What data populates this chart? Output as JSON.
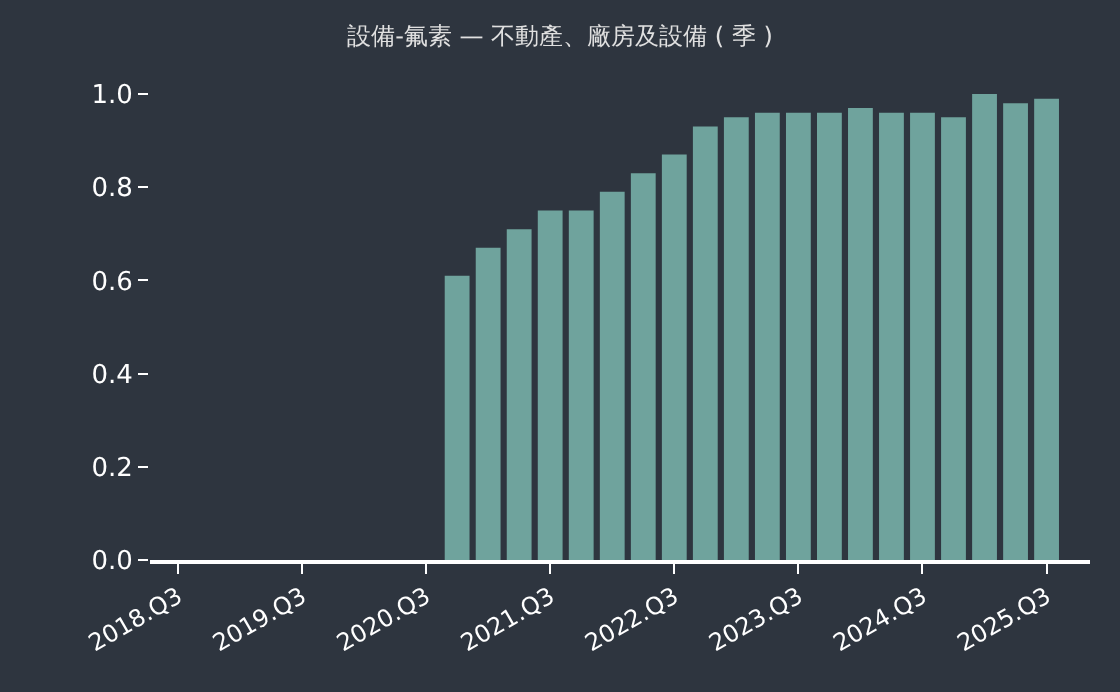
{
  "chart_data": {
    "type": "bar",
    "title": "設備-氟素 — 不動產、廠房及設備 ( 季 )",
    "categories": [
      "2018.Q3",
      null,
      null,
      null,
      "2019.Q3",
      null,
      null,
      null,
      "2020.Q3",
      null,
      null,
      null,
      "2021.Q3",
      null,
      null,
      null,
      "2022.Q3",
      null,
      null,
      null,
      "2023.Q3",
      null,
      null,
      null,
      "2024.Q3",
      null,
      null,
      null,
      "2025.Q3"
    ],
    "values": [
      null,
      null,
      null,
      null,
      null,
      null,
      null,
      null,
      null,
      0.61,
      0.67,
      0.71,
      0.75,
      0.75,
      0.79,
      0.83,
      0.87,
      0.93,
      0.95,
      0.96,
      0.96,
      0.96,
      0.97,
      0.96,
      0.96,
      0.95,
      1.0,
      0.98,
      0.99
    ],
    "color": "#6fa39d",
    "ylim": [
      0,
      1
    ],
    "yticks": [
      {
        "value": 0,
        "label": "0.0"
      },
      0.2,
      0.4,
      0.6,
      0.8,
      {
        "value": 1,
        "label": "1.0"
      }
    ],
    "grid": false
  }
}
